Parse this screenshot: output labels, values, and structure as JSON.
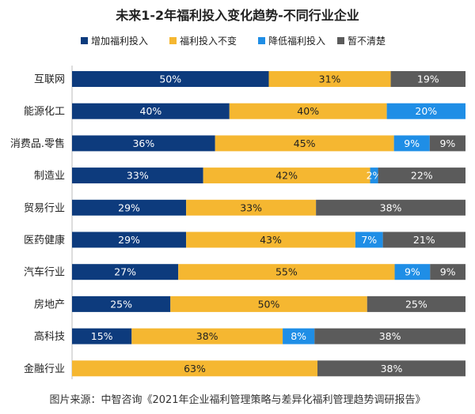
{
  "chart_data": {
    "type": "bar",
    "orientation": "horizontal",
    "stacked": true,
    "title": "未来1-2年福利投入变化趋势-不同行业企业",
    "legend_position": "top",
    "categories": [
      "互联网",
      "能源化工",
      "消费品.零售",
      "制造业",
      "贸易行业",
      "医药健康",
      "汽车行业",
      "房地产",
      "高科技",
      "金融行业"
    ],
    "series": [
      {
        "name": "增加福利投入",
        "color": "#0d3b7d",
        "values": [
          50,
          40,
          36,
          33,
          29,
          29,
          27,
          25,
          15,
          0
        ]
      },
      {
        "name": "福利投入不变",
        "color": "#f5b731",
        "values": [
          31,
          40,
          45,
          42,
          33,
          43,
          55,
          50,
          38,
          63
        ]
      },
      {
        "name": "降低福利投入",
        "color": "#1f8ee6",
        "values": [
          0,
          20,
          9,
          2,
          0,
          7,
          9,
          0,
          8,
          0
        ]
      },
      {
        "name": "暂不清楚",
        "color": "#5b5b5b",
        "values": [
          19,
          0,
          9,
          22,
          38,
          21,
          9,
          25,
          38,
          38
        ]
      }
    ],
    "label_colors": [
      "#ffffff",
      "#222222",
      "#ffffff",
      "#ffffff"
    ],
    "unit": "%",
    "grid": false
  },
  "source_text": "图片来源：中智咨询《2021年企业福利管理策略与差异化福利管理趋势调研报告》"
}
